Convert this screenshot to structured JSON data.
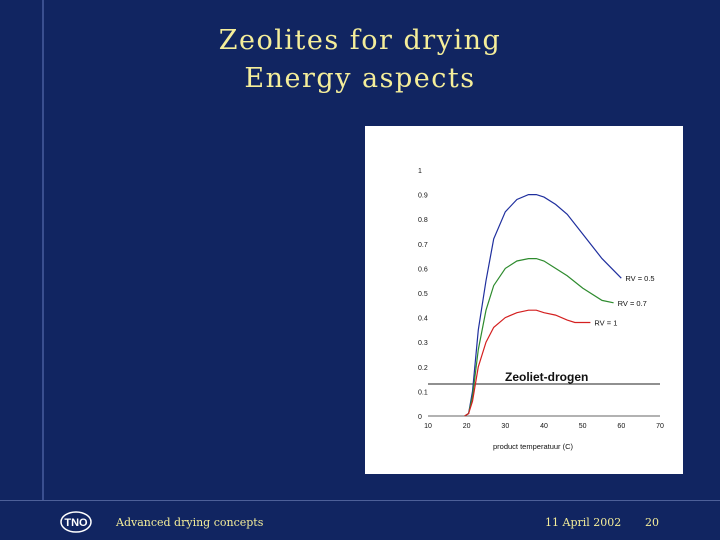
{
  "slide": {
    "title_line1": "Zeolites for drying",
    "title_line2": "Energy aspects"
  },
  "footer": {
    "left_text": "Advanced drying concepts",
    "date": "11 April 2002",
    "page": "20",
    "logo_text": "TNO"
  },
  "colors": {
    "background": "#112561",
    "title": "#f5ee9a",
    "series_rv05": "#1f2f9e",
    "series_rv07": "#2e8b2e",
    "series_rv1": "#d42020"
  },
  "chart_data": {
    "type": "line",
    "title": "Zeoliet-drogen",
    "xlabel": "product temperatuur (C)",
    "ylabel": "",
    "xlim": [
      10,
      70
    ],
    "ylim": [
      0,
      1
    ],
    "x_ticks": [
      "10",
      "20",
      "30",
      "40",
      "50",
      "60",
      "70"
    ],
    "y_ticks": [
      "0",
      "0.1",
      "0.2",
      "0.3",
      "0.4",
      "0.5",
      "0.6",
      "0.7",
      "0.8",
      "0.9",
      "1"
    ],
    "hline": 0.13,
    "grid": false,
    "series": [
      {
        "name": "RV = 0.5",
        "color": "#1f2f9e",
        "x": [
          19.5,
          20.5,
          21.5,
          23,
          25,
          27,
          30,
          33,
          36,
          38,
          40,
          43,
          46,
          50,
          55,
          60
        ],
        "y": [
          0,
          0.01,
          0.1,
          0.35,
          0.55,
          0.72,
          0.83,
          0.88,
          0.9,
          0.9,
          0.89,
          0.86,
          0.82,
          0.74,
          0.64,
          0.56
        ]
      },
      {
        "name": "RV = 0.7",
        "color": "#2e8b2e",
        "x": [
          19.5,
          20.5,
          21.5,
          23,
          25,
          27,
          30,
          33,
          36,
          38,
          40,
          43,
          46,
          50,
          55,
          58
        ],
        "y": [
          0,
          0.01,
          0.08,
          0.27,
          0.43,
          0.53,
          0.6,
          0.63,
          0.64,
          0.64,
          0.63,
          0.6,
          0.57,
          0.52,
          0.47,
          0.46
        ]
      },
      {
        "name": "RV = 1",
        "color": "#d42020",
        "x": [
          19.5,
          20.5,
          21.5,
          23,
          25,
          27,
          30,
          33,
          36,
          38,
          40,
          43,
          46,
          48,
          50,
          52
        ],
        "y": [
          0,
          0.01,
          0.06,
          0.2,
          0.3,
          0.36,
          0.4,
          0.42,
          0.43,
          0.43,
          0.42,
          0.41,
          0.39,
          0.38,
          0.38,
          0.38
        ]
      }
    ]
  }
}
